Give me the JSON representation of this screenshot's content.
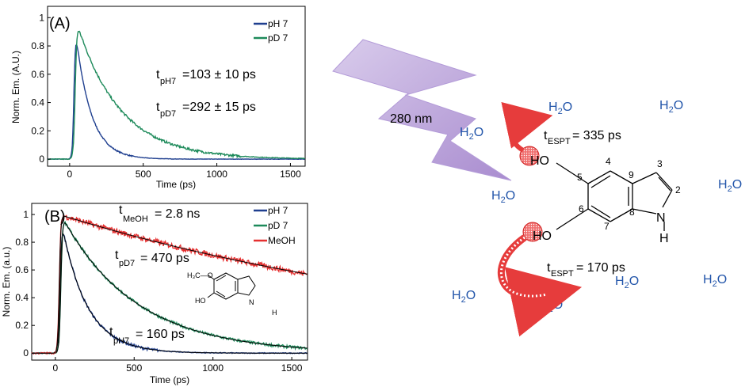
{
  "chart_data": [
    {
      "type": "line",
      "panel_label": "(A)",
      "xlabel": "Time (ps)",
      "ylabel": "Norm. Em. (A.U.)",
      "xlim": [
        -150,
        1600
      ],
      "ylim": [
        -0.05,
        1.08
      ],
      "x_ticks": [
        "0",
        "500",
        "1000",
        "1500"
      ],
      "y_ticks": [
        "0",
        "0.2",
        "0.4",
        "0.6",
        "0.8",
        "1"
      ],
      "legend_position": "top-right",
      "series": [
        {
          "name": "pH 7",
          "color": "#1f3f8f",
          "rise_center": 30,
          "rise_width": 22,
          "decay_tau": 103,
          "noise": 0.004
        },
        {
          "name": "pD 7",
          "color": "#1d8a5a",
          "rise_center": 38,
          "rise_width": 24,
          "decay_tau": 292,
          "noise": 0.008
        }
      ],
      "annotations": [
        {
          "prefix": "t",
          "sub": "pH7",
          "text": "=103 ± 10 ps"
        },
        {
          "prefix": "t",
          "sub": "pD7",
          "text": "=292 ± 15  ps"
        }
      ]
    },
    {
      "type": "line",
      "panel_label": "(B)",
      "xlabel": "Time (ps)",
      "ylabel": "Norm. Em. (a.u.)",
      "xlim": [
        -150,
        1600
      ],
      "ylim": [
        -0.05,
        1.08
      ],
      "x_ticks": [
        "0",
        "500",
        "1000",
        "1500"
      ],
      "y_ticks": [
        "0",
        "0.2",
        "0.4",
        "0.6",
        "0.8",
        "1"
      ],
      "legend_position": "top-right",
      "series": [
        {
          "name": "pH 7",
          "color": "#1f3f8f",
          "rise_center": 30,
          "rise_width": 22,
          "decay_tau": 160,
          "noise": 0.01
        },
        {
          "name": "pD 7",
          "color": "#1d8a5a",
          "rise_center": 35,
          "rise_width": 22,
          "decay_tau": 470,
          "noise": 0.01
        },
        {
          "name": "MeOH",
          "color": "#e53030",
          "rise_center": 25,
          "rise_width": 20,
          "decay_tau": 2800,
          "noise": 0.02
        }
      ],
      "fit_color": "#000000",
      "annotations": [
        {
          "prefix": "t",
          "sub": "MeOH",
          "text": " = 2.8 ns"
        },
        {
          "prefix": "t",
          "sub": "pD7",
          "text": " = 470 ps"
        },
        {
          "prefix": "t",
          "sub": "pH7",
          "text": "= 160 ps"
        }
      ],
      "inset_labels": {
        "methoxy": "H₃C—O",
        "hydroxy": "HO",
        "nh": "N",
        "h": "H"
      }
    }
  ],
  "scheme": {
    "excitation": "280 nm",
    "water_main": "H",
    "water_sub": "2",
    "water_tail": "O",
    "espt_prefix": "t",
    "espt_sub": "ESPT",
    "espt_top": "= 335 ps",
    "espt_bottom": "= 170 ps",
    "atoms": {
      "ho_top": "HO",
      "ho_bottom": "HO",
      "n": "N",
      "h": "H"
    },
    "ring_numbers": [
      "2",
      "3",
      "4",
      "5",
      "6",
      "7",
      "8",
      "9"
    ],
    "colors": {
      "water": "#2255aa",
      "arrow": "#e63c3c",
      "bolt": "#c8b4e0"
    }
  }
}
